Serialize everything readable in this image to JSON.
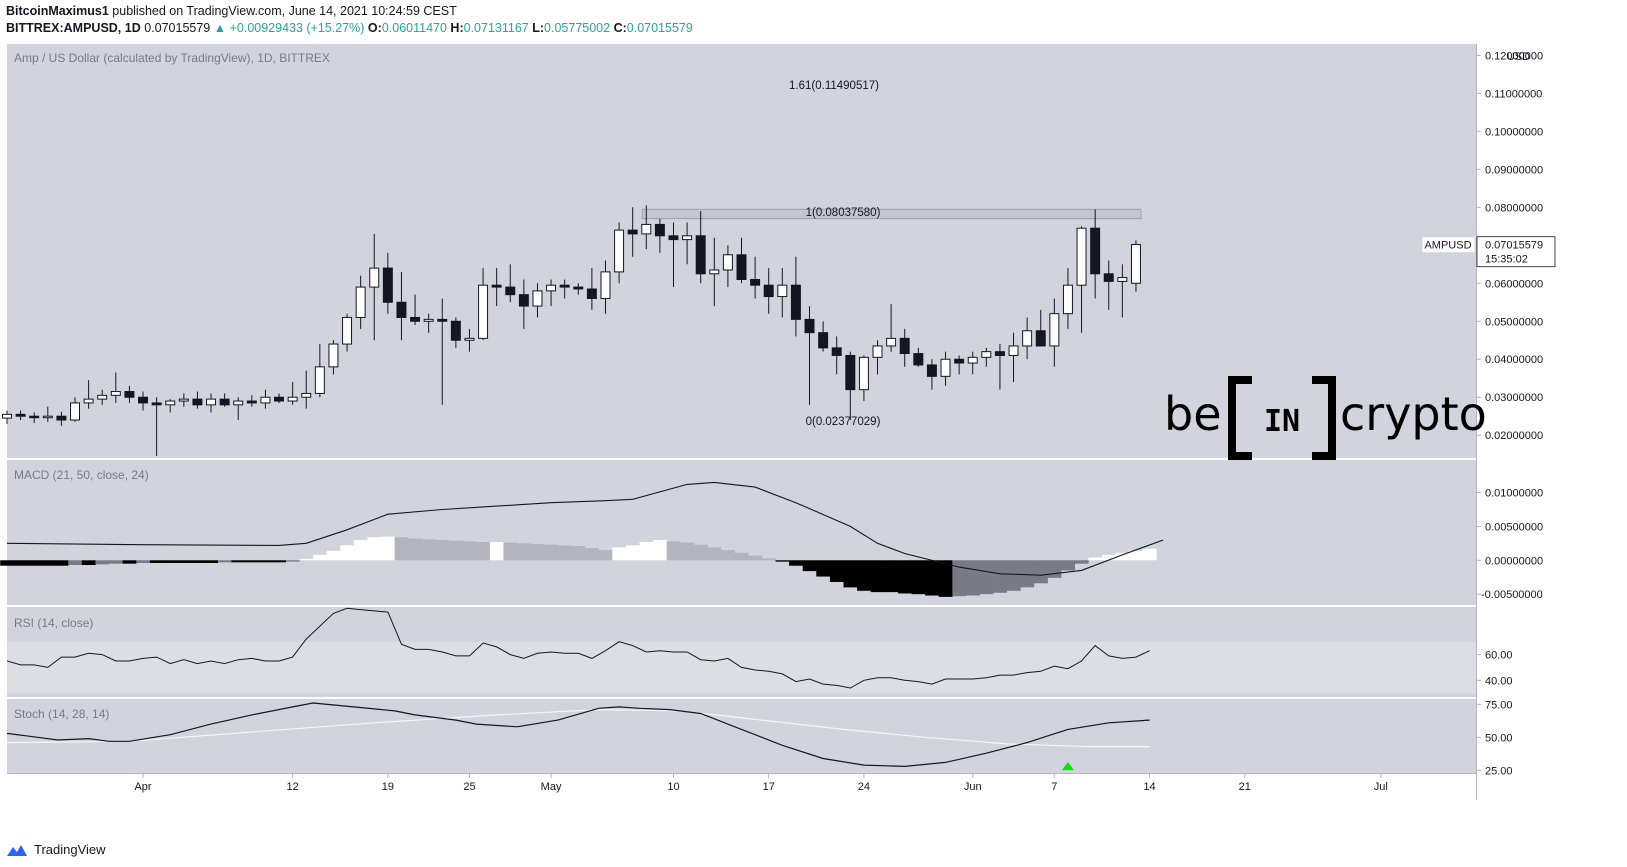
{
  "header": {
    "author": "BitcoinMaximus1",
    "published": "published on TradingView.com, June 14, 2021 10:24:59 CEST",
    "symbol": "BITTREX:AMPUSD, 1D",
    "last": "0.07015579",
    "change": "▲ +0.00929433 (+15.27%)",
    "o_label": "O:",
    "o": "0.06011470",
    "h_label": "H:",
    "h": "0.07131167",
    "l_label": "L:",
    "l": "0.05775002",
    "c_label": "C:",
    "c": "0.07015579"
  },
  "main_pane": {
    "title": "Amp / US Dollar (calculated by TradingView), 1D, BITTREX",
    "currency": "USD",
    "price_ticks": [
      "0.12000000",
      "0.11000000",
      "0.10000000",
      "0.09000000",
      "0.08000000",
      "0.07000000",
      "0.06000000",
      "0.05000000",
      "0.04000000",
      "0.03000000",
      "0.02000000"
    ],
    "fib_labels": {
      "fib161": "1.61(0.11490517)",
      "fib1": "1(0.08037580)",
      "fib0": "0(0.02377029)"
    },
    "price_tag": {
      "symbol": "AMPUSD",
      "price": "0.07015579",
      "countdown": "15:35:02"
    },
    "watermark": {
      "left": "be",
      "middle": "IN",
      "right": "crypto"
    }
  },
  "macd_pane": {
    "title": "MACD (21, 50, close, 24)",
    "ticks": [
      "0.01000000",
      "0.00500000",
      "0.00000000",
      "-0.00500000"
    ]
  },
  "rsi_pane": {
    "title": "RSI (14, close)",
    "ticks": [
      "60.00",
      "40.00"
    ]
  },
  "stoch_pane": {
    "title": "Stoch (14, 28, 14)",
    "ticks": [
      "75.00",
      "50.00",
      "25.00"
    ]
  },
  "time_axis": [
    "Apr",
    "12",
    "19",
    "25",
    "May",
    "10",
    "17",
    "24",
    "Jun",
    "7",
    "14",
    "21",
    "Jul"
  ],
  "footer": {
    "brand": "TradingView"
  },
  "colors": {
    "pane_bg": "#d1d4dc",
    "up": "#ffffff",
    "down": "#131722",
    "green_arrow": "#00e600",
    "up_text": "#26a69a"
  },
  "chart_data": {
    "type": "candlestick",
    "title": "Amp / US Dollar (calculated by TradingView), 1D, BITTREX",
    "ylabel": "USD",
    "ylim": [
      0.014,
      0.123
    ],
    "x_range": [
      "2021-03-22",
      "2021-07-08"
    ],
    "dates": [
      "2021-03-22",
      "2021-03-23",
      "2021-03-24",
      "2021-03-25",
      "2021-03-26",
      "2021-03-27",
      "2021-03-28",
      "2021-03-29",
      "2021-03-30",
      "2021-03-31",
      "2021-04-01",
      "2021-04-02",
      "2021-04-03",
      "2021-04-04",
      "2021-04-05",
      "2021-04-06",
      "2021-04-07",
      "2021-04-08",
      "2021-04-09",
      "2021-04-10",
      "2021-04-11",
      "2021-04-12",
      "2021-04-13",
      "2021-04-14",
      "2021-04-15",
      "2021-04-16",
      "2021-04-17",
      "2021-04-18",
      "2021-04-19",
      "2021-04-20",
      "2021-04-21",
      "2021-04-22",
      "2021-04-23",
      "2021-04-24",
      "2021-04-25",
      "2021-04-26",
      "2021-04-27",
      "2021-04-28",
      "2021-04-29",
      "2021-04-30",
      "2021-05-01",
      "2021-05-02",
      "2021-05-03",
      "2021-05-04",
      "2021-05-05",
      "2021-05-06",
      "2021-05-07",
      "2021-05-08",
      "2021-05-09",
      "2021-05-10",
      "2021-05-11",
      "2021-05-12",
      "2021-05-13",
      "2021-05-14",
      "2021-05-15",
      "2021-05-16",
      "2021-05-17",
      "2021-05-18",
      "2021-05-19",
      "2021-05-20",
      "2021-05-21",
      "2021-05-22",
      "2021-05-23",
      "2021-05-24",
      "2021-05-25",
      "2021-05-26",
      "2021-05-27",
      "2021-05-28",
      "2021-05-29",
      "2021-05-30",
      "2021-05-31",
      "2021-06-01",
      "2021-06-02",
      "2021-06-03",
      "2021-06-04",
      "2021-06-05",
      "2021-06-06",
      "2021-06-07",
      "2021-06-08",
      "2021-06-09",
      "2021-06-10",
      "2021-06-11",
      "2021-06-12",
      "2021-06-13",
      "2021-06-14"
    ],
    "ohlc": [
      [
        0.0245,
        0.0265,
        0.023,
        0.0255
      ],
      [
        0.0255,
        0.0265,
        0.024,
        0.025
      ],
      [
        0.025,
        0.026,
        0.0232,
        0.0248
      ],
      [
        0.0248,
        0.0275,
        0.0235,
        0.025
      ],
      [
        0.025,
        0.0262,
        0.0225,
        0.024
      ],
      [
        0.024,
        0.03,
        0.0235,
        0.0285
      ],
      [
        0.0285,
        0.0345,
        0.027,
        0.0295
      ],
      [
        0.0295,
        0.032,
        0.028,
        0.0305
      ],
      [
        0.0305,
        0.0365,
        0.0285,
        0.0315
      ],
      [
        0.0315,
        0.033,
        0.0285,
        0.03
      ],
      [
        0.03,
        0.0315,
        0.0265,
        0.0285
      ],
      [
        0.0285,
        0.03,
        0.0145,
        0.028
      ],
      [
        0.028,
        0.0295,
        0.026,
        0.029
      ],
      [
        0.029,
        0.031,
        0.0275,
        0.0295
      ],
      [
        0.0295,
        0.0315,
        0.027,
        0.028
      ],
      [
        0.028,
        0.031,
        0.026,
        0.0295
      ],
      [
        0.0295,
        0.031,
        0.0275,
        0.028
      ],
      [
        0.028,
        0.03,
        0.024,
        0.029
      ],
      [
        0.029,
        0.0305,
        0.0275,
        0.0285
      ],
      [
        0.0285,
        0.032,
        0.027,
        0.03
      ],
      [
        0.03,
        0.031,
        0.0285,
        0.029
      ],
      [
        0.029,
        0.034,
        0.028,
        0.03
      ],
      [
        0.03,
        0.037,
        0.027,
        0.031
      ],
      [
        0.031,
        0.044,
        0.03,
        0.038
      ],
      [
        0.038,
        0.045,
        0.036,
        0.044
      ],
      [
        0.044,
        0.052,
        0.042,
        0.051
      ],
      [
        0.051,
        0.062,
        0.048,
        0.059
      ],
      [
        0.059,
        0.073,
        0.045,
        0.064
      ],
      [
        0.064,
        0.068,
        0.052,
        0.055
      ],
      [
        0.055,
        0.063,
        0.045,
        0.051
      ],
      [
        0.051,
        0.057,
        0.049,
        0.05
      ],
      [
        0.05,
        0.052,
        0.047,
        0.0505
      ],
      [
        0.0505,
        0.056,
        0.028,
        0.05
      ],
      [
        0.05,
        0.051,
        0.043,
        0.045
      ],
      [
        0.045,
        0.048,
        0.042,
        0.0455
      ],
      [
        0.0455,
        0.064,
        0.045,
        0.0595
      ],
      [
        0.0595,
        0.064,
        0.054,
        0.059
      ],
      [
        0.059,
        0.065,
        0.055,
        0.057
      ],
      [
        0.057,
        0.061,
        0.048,
        0.054
      ],
      [
        0.054,
        0.06,
        0.051,
        0.058
      ],
      [
        0.058,
        0.061,
        0.054,
        0.0595
      ],
      [
        0.0595,
        0.061,
        0.056,
        0.059
      ],
      [
        0.059,
        0.06,
        0.057,
        0.0585
      ],
      [
        0.0585,
        0.064,
        0.053,
        0.056
      ],
      [
        0.056,
        0.066,
        0.052,
        0.063
      ],
      [
        0.063,
        0.076,
        0.06,
        0.074
      ],
      [
        0.074,
        0.08,
        0.067,
        0.073
      ],
      [
        0.073,
        0.0805,
        0.069,
        0.0755
      ],
      [
        0.0755,
        0.077,
        0.068,
        0.0725
      ],
      [
        0.0725,
        0.076,
        0.059,
        0.0715
      ],
      [
        0.0715,
        0.076,
        0.065,
        0.0725
      ],
      [
        0.0725,
        0.079,
        0.06,
        0.0625
      ],
      [
        0.0625,
        0.072,
        0.054,
        0.0635
      ],
      [
        0.0635,
        0.07,
        0.059,
        0.0675
      ],
      [
        0.0675,
        0.072,
        0.06,
        0.061
      ],
      [
        0.061,
        0.067,
        0.056,
        0.0595
      ],
      [
        0.0595,
        0.064,
        0.052,
        0.0565
      ],
      [
        0.0565,
        0.064,
        0.051,
        0.0595
      ],
      [
        0.0595,
        0.067,
        0.046,
        0.0505
      ],
      [
        0.0505,
        0.054,
        0.028,
        0.047
      ],
      [
        0.047,
        0.05,
        0.042,
        0.043
      ],
      [
        0.043,
        0.046,
        0.036,
        0.041
      ],
      [
        0.041,
        0.042,
        0.024,
        0.032
      ],
      [
        0.032,
        0.041,
        0.029,
        0.0405
      ],
      [
        0.0405,
        0.045,
        0.036,
        0.0435
      ],
      [
        0.0435,
        0.0545,
        0.042,
        0.0455
      ],
      [
        0.0455,
        0.048,
        0.038,
        0.0415
      ],
      [
        0.0415,
        0.043,
        0.038,
        0.0385
      ],
      [
        0.0385,
        0.04,
        0.032,
        0.0355
      ],
      [
        0.0355,
        0.042,
        0.033,
        0.04
      ],
      [
        0.04,
        0.041,
        0.036,
        0.039
      ],
      [
        0.039,
        0.042,
        0.036,
        0.0405
      ],
      [
        0.0405,
        0.043,
        0.038,
        0.042
      ],
      [
        0.042,
        0.044,
        0.032,
        0.041
      ],
      [
        0.041,
        0.047,
        0.034,
        0.0435
      ],
      [
        0.0435,
        0.051,
        0.04,
        0.0475
      ],
      [
        0.0475,
        0.053,
        0.044,
        0.0435
      ],
      [
        0.0435,
        0.056,
        0.038,
        0.052
      ],
      [
        0.052,
        0.064,
        0.048,
        0.0595
      ],
      [
        0.0595,
        0.075,
        0.047,
        0.0745
      ],
      [
        0.0745,
        0.0795,
        0.056,
        0.0625
      ],
      [
        0.0625,
        0.066,
        0.053,
        0.0605
      ],
      [
        0.0605,
        0.065,
        0.051,
        0.0615
      ],
      [
        0.06,
        0.0713,
        0.0578,
        0.0702
      ]
    ],
    "fib_levels": [
      {
        "label": "1.61",
        "value": 0.11490517
      },
      {
        "label": "1",
        "value": 0.0803758
      },
      {
        "label": "0",
        "value": 0.02377029
      }
    ],
    "resistance_band": [
      0.077,
      0.0795
    ],
    "macd": {
      "ylim": [
        -0.0066,
        0.0148
      ],
      "signal_points": [
        [
          0,
          0.0025
        ],
        [
          10,
          0.0023
        ],
        [
          20,
          0.0022
        ],
        [
          22,
          0.0025
        ],
        [
          25,
          0.0045
        ],
        [
          28,
          0.0068
        ],
        [
          32,
          0.0075
        ],
        [
          36,
          0.008
        ],
        [
          40,
          0.0085
        ],
        [
          44,
          0.0088
        ],
        [
          46,
          0.009
        ],
        [
          50,
          0.0112
        ],
        [
          52,
          0.0115
        ],
        [
          55,
          0.0108
        ],
        [
          58,
          0.0085
        ],
        [
          62,
          0.005
        ],
        [
          64,
          0.0025
        ],
        [
          66,
          0.001
        ],
        [
          70,
          -0.001
        ],
        [
          73,
          -0.002
        ],
        [
          76,
          -0.0022
        ],
        [
          79,
          -0.0015
        ],
        [
          82,
          0.0008
        ],
        [
          85,
          0.003
        ]
      ],
      "histogram": [
        -0.0008,
        -0.0008,
        -0.0008,
        -0.0008,
        -0.0008,
        -0.0007,
        -0.0007,
        -0.0006,
        -0.0005,
        -0.0005,
        -0.0004,
        -0.0004,
        -0.0004,
        -0.0004,
        -0.0004,
        -0.0004,
        -0.0003,
        -0.0003,
        -0.0003,
        -0.0003,
        -0.0003,
        -0.0002,
        0.0002,
        0.0008,
        0.0014,
        0.0022,
        0.003,
        0.0034,
        0.0035,
        0.0034,
        0.0032,
        0.0031,
        0.003,
        0.0029,
        0.0028,
        0.0027,
        0.0027,
        0.0026,
        0.0025,
        0.0024,
        0.0023,
        0.0022,
        0.0021,
        0.0018,
        0.0015,
        0.0019,
        0.0022,
        0.0027,
        0.003,
        0.0028,
        0.0026,
        0.0023,
        0.0019,
        0.0015,
        0.0011,
        0.0007,
        0.0003,
        -0.0002,
        -0.0008,
        -0.0016,
        -0.0024,
        -0.0032,
        -0.004,
        -0.0045,
        -0.0047,
        -0.0047,
        -0.0049,
        -0.005,
        -0.0052,
        -0.0054,
        -0.0053,
        -0.0052,
        -0.005,
        -0.0048,
        -0.0045,
        -0.004,
        -0.0034,
        -0.0026,
        -0.0015,
        -0.0005,
        0.0004,
        0.0008,
        0.0011,
        0.0014,
        0.0017
      ]
    },
    "rsi": {
      "ylim": [
        27,
        97
      ],
      "band": [
        30,
        70
      ],
      "values": [
        55,
        52,
        52,
        50,
        58,
        58,
        61,
        60,
        55,
        55,
        57,
        58,
        53,
        56,
        53,
        55,
        53,
        56,
        57,
        55,
        55,
        58,
        72,
        82,
        92,
        96,
        95,
        94,
        93,
        68,
        64,
        64,
        62,
        59,
        59,
        69,
        66,
        60,
        57,
        61,
        62,
        61,
        61,
        57,
        63,
        70,
        67,
        62,
        63,
        62,
        62,
        56,
        55,
        57,
        50,
        48,
        47,
        45,
        39,
        41,
        37,
        36,
        34,
        40,
        42,
        42,
        40,
        39,
        37,
        41,
        41,
        41,
        42,
        44,
        44,
        46,
        47,
        51,
        49,
        55,
        67,
        59,
        57,
        58,
        63
      ]
    },
    "stoch": {
      "ylim": [
        23,
        79
      ],
      "k_points": [
        [
          0,
          53
        ],
        [
          3,
          50
        ],
        [
          5,
          48
        ],
        [
          8,
          49
        ],
        [
          10,
          47
        ],
        [
          12,
          47
        ],
        [
          16,
          52
        ],
        [
          20,
          60
        ],
        [
          24,
          67
        ],
        [
          28,
          73
        ],
        [
          30,
          76
        ],
        [
          34,
          73
        ],
        [
          38,
          70
        ],
        [
          40,
          67
        ],
        [
          44,
          63
        ],
        [
          46,
          60
        ],
        [
          50,
          58
        ],
        [
          54,
          63
        ],
        [
          58,
          72
        ],
        [
          60,
          73
        ],
        [
          62,
          72
        ],
        [
          65,
          71
        ],
        [
          68,
          68
        ],
        [
          72,
          56
        ],
        [
          76,
          44
        ],
        [
          80,
          34
        ],
        [
          84,
          29
        ],
        [
          88,
          28
        ],
        [
          92,
          31
        ],
        [
          96,
          38
        ],
        [
          100,
          46
        ],
        [
          104,
          56
        ],
        [
          108,
          61
        ],
        [
          112,
          63
        ]
      ],
      "d_points": [
        [
          0,
          46
        ],
        [
          12,
          47
        ],
        [
          24,
          54
        ],
        [
          36,
          61
        ],
        [
          48,
          67
        ],
        [
          58,
          71
        ],
        [
          66,
          70
        ],
        [
          74,
          63
        ],
        [
          82,
          56
        ],
        [
          90,
          50
        ],
        [
          98,
          45
        ],
        [
          106,
          43
        ],
        [
          112,
          43
        ]
      ],
      "signal_arrow_index": 78
    }
  }
}
